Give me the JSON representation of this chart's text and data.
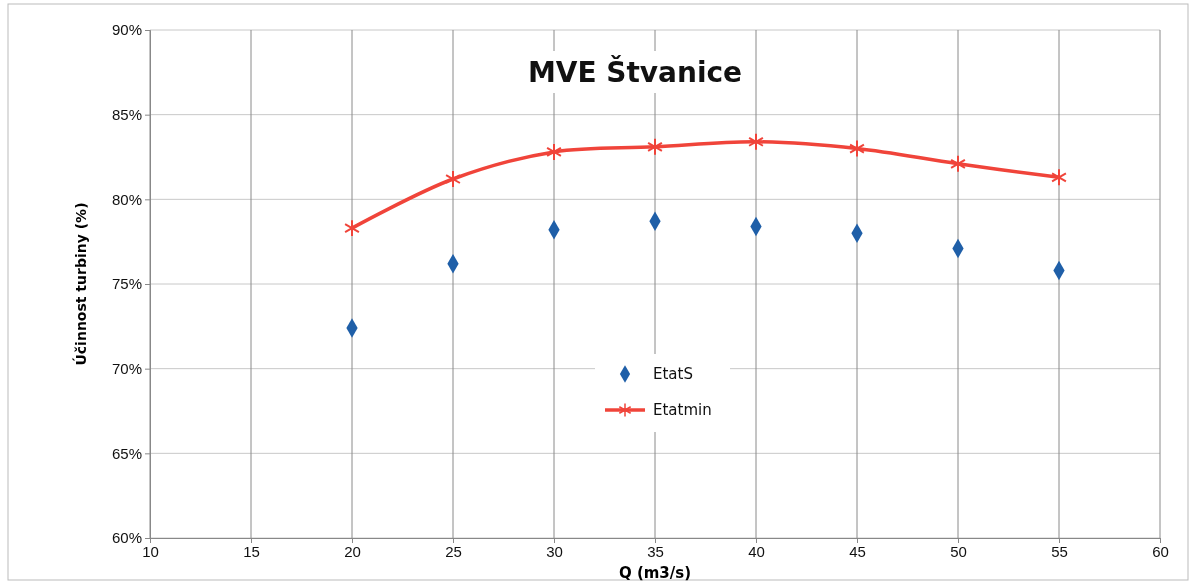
{
  "chart_data": {
    "type": "scatter",
    "title": "MVE Štvanice",
    "xlabel": "Q (m3/s)",
    "ylabel": "Účinnost turbiny (%)",
    "x": [
      20,
      25,
      30,
      35,
      40,
      45,
      50,
      55
    ],
    "series": [
      {
        "name": "EtatS",
        "color": "#1f5fa8",
        "marker": "diamond",
        "values": [
          72.4,
          76.2,
          78.2,
          78.7,
          78.4,
          78.0,
          77.1,
          75.8
        ]
      },
      {
        "name": "Etatmin",
        "type": "line",
        "color": "#f0443a",
        "marker": "cross",
        "values": [
          78.3,
          81.2,
          82.8,
          83.1,
          83.4,
          83.0,
          82.1,
          81.3
        ]
      }
    ],
    "xlim": [
      10,
      60
    ],
    "xticks": [
      10,
      15,
      20,
      25,
      30,
      35,
      40,
      45,
      50,
      55,
      60
    ],
    "ylim": [
      60,
      90
    ],
    "yticks": [
      {
        "value": 60,
        "label": "60%"
      },
      {
        "value": 65,
        "label": "65%"
      },
      {
        "value": 70,
        "label": "70%"
      },
      {
        "value": 75,
        "label": "75%"
      },
      {
        "value": 80,
        "label": "80%"
      },
      {
        "value": 85,
        "label": "85%"
      },
      {
        "value": 90,
        "label": "90%"
      }
    ],
    "grid": true,
    "legend": "center"
  }
}
